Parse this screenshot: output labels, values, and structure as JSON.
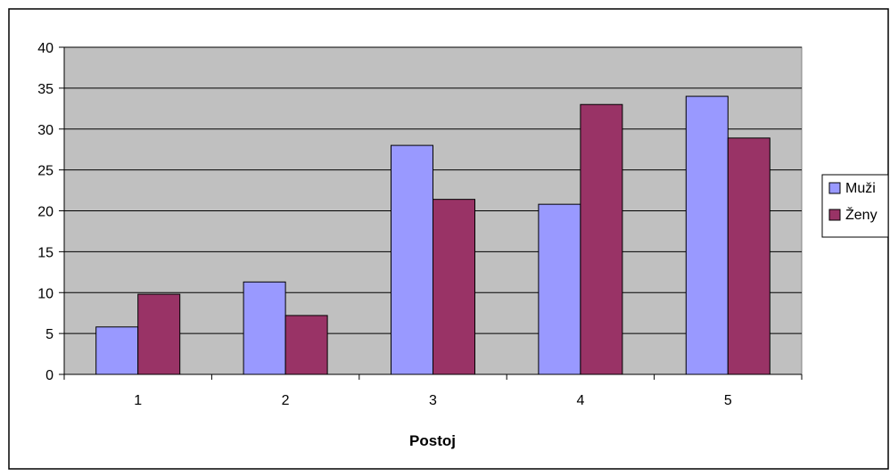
{
  "chart_data": {
    "type": "bar",
    "title": "",
    "xlabel": "Postoj",
    "ylabel": "",
    "categories": [
      "1",
      "2",
      "3",
      "4",
      "5"
    ],
    "ylim": [
      0,
      40
    ],
    "yticks": [
      0,
      5,
      10,
      15,
      20,
      25,
      30,
      35,
      40
    ],
    "grid": true,
    "legend_position": "right",
    "plot_background": "#c0c0c0",
    "series": [
      {
        "name": "Muži",
        "color": "#9999ff",
        "values": [
          5.8,
          11.3,
          28.0,
          20.8,
          34.0
        ]
      },
      {
        "name": "Ženy",
        "color": "#993366",
        "values": [
          9.8,
          7.2,
          21.4,
          33.0,
          28.9
        ]
      }
    ]
  }
}
